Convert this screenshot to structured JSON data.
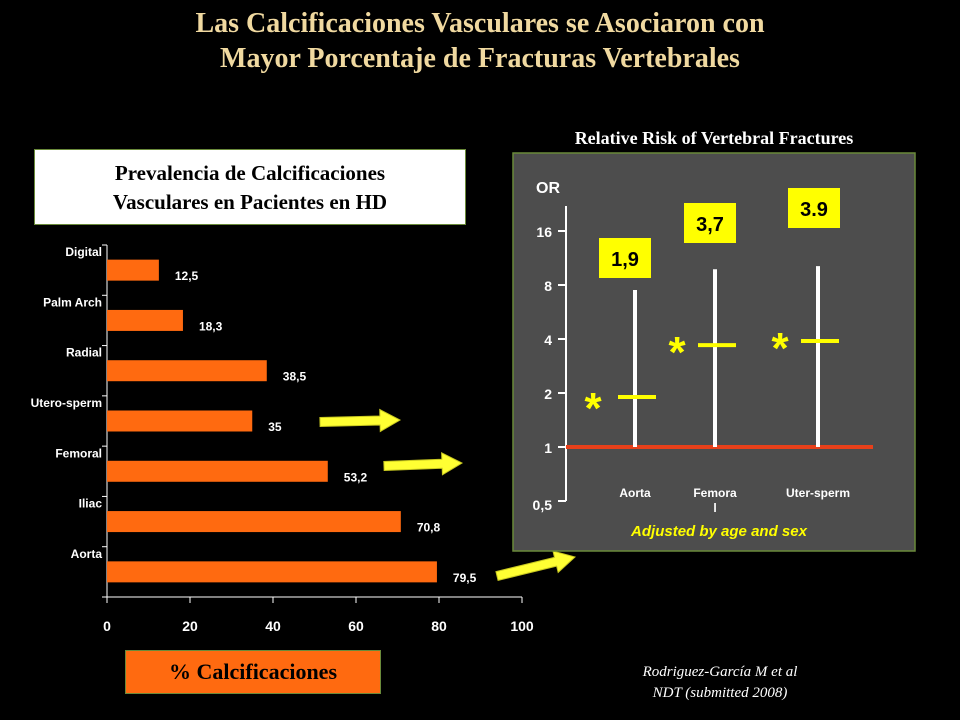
{
  "title": {
    "line1": "Las Calcificaciones Vasculares se Asociaron con",
    "line2": "Mayor Porcentaje de  Fracturas Vertebrales"
  },
  "left_panel": {
    "title_line1": "Prevalencia de Calcificaciones",
    "title_line2": "Vasculares en  Pacientes en HD",
    "xlabel": "% Calcificaciones"
  },
  "right_panel": {
    "title": "Relative Risk of Vertebral Fractures",
    "ylabel": "OR",
    "note": "Adjusted by age and sex"
  },
  "citation": {
    "line1": "Rodriguez-García  M  et al",
    "line2": "NDT (submitted 2008)"
  },
  "colors": {
    "bar": "#ff6a10",
    "panel_bg": "#4d4d4d",
    "panel_border": "#6a8a3a",
    "reference_line": "#e8401a",
    "label_box": "#ffff00",
    "arrow": "#ffff33",
    "title": "#f0d9a0"
  },
  "chart_data": [
    {
      "type": "bar",
      "orientation": "horizontal",
      "categories": [
        "Digital",
        "Palm Arch",
        "Radial",
        "Utero-sperm",
        "Femoral",
        "Iliac",
        "Aorta"
      ],
      "values": [
        12.5,
        18.3,
        38.5,
        35,
        53.2,
        70.8,
        79.5
      ],
      "value_labels": [
        "12,5",
        "18,3",
        "38,5",
        "35",
        "53,2",
        "70,8",
        "79,5"
      ],
      "xlim": [
        0,
        100
      ],
      "xticks": [
        0,
        20,
        40,
        60,
        80,
        100
      ],
      "xlabel": "% Calcificaciones",
      "highlighted_with_arrows": [
        "Utero-sperm",
        "Femoral",
        "Aorta"
      ]
    },
    {
      "type": "scatter",
      "subtype": "odds-ratio",
      "title": "Relative Risk of Vertebral Fractures",
      "ylabel": "OR",
      "yscale": "log",
      "ylim": [
        0.5,
        16
      ],
      "yticks": [
        1,
        2,
        4,
        8,
        16
      ],
      "ytick_labels": [
        "1",
        "2",
        "4",
        "8",
        "16"
      ],
      "ytick_bottom_label": "0,5",
      "reference_line": 1,
      "categories": [
        "Aorta",
        "Femoral",
        "Uter-sperm"
      ],
      "category_labels": [
        [
          "Aorta"
        ],
        [
          "Femora",
          "l"
        ],
        [
          "Uter-sperm"
        ]
      ],
      "or": [
        1.9,
        3.7,
        3.9
      ],
      "or_labels": [
        "1,9",
        "3,7",
        "3.9"
      ],
      "ci_lower": [
        1.0,
        1.0,
        1.0
      ],
      "ci_upper": [
        7.5,
        9.8,
        10.2
      ],
      "significant": [
        "*",
        "*",
        "*"
      ],
      "note": "Adjusted by age and sex"
    }
  ]
}
